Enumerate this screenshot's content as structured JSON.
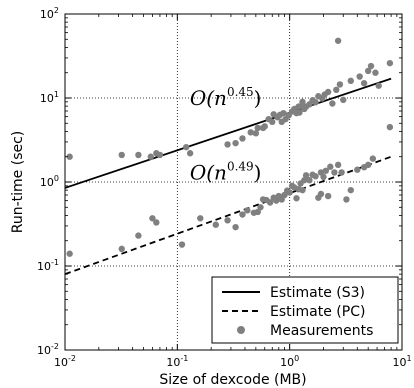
{
  "chart_data": {
    "type": "scatter",
    "xlabel": "Size of dexcode (MB)",
    "ylabel": "Run-time (sec)",
    "xscale": "log",
    "yscale": "log",
    "xlim": [
      0.01,
      10
    ],
    "ylim": [
      0.01,
      100
    ],
    "grid": true,
    "legend_position": "bottom-right",
    "x_ticks": [
      {
        "base": "10",
        "exp": "-2",
        "value": 0.01
      },
      {
        "base": "10",
        "exp": "-1",
        "value": 0.1
      },
      {
        "base": "10",
        "exp": "0",
        "value": 1
      },
      {
        "base": "10",
        "exp": "1",
        "value": 10
      }
    ],
    "y_ticks": [
      {
        "base": "10",
        "exp": "-2",
        "value": 0.01
      },
      {
        "base": "10",
        "exp": "-1",
        "value": 0.1
      },
      {
        "base": "10",
        "exp": "0",
        "value": 1
      },
      {
        "base": "10",
        "exp": "1",
        "value": 10
      },
      {
        "base": "10",
        "exp": "2",
        "value": 100
      }
    ],
    "series": [
      {
        "name": "Estimate (S3)",
        "style": "solid",
        "color": "#000000",
        "x": [
          0.01,
          8
        ],
        "y": [
          0.85,
          17
        ]
      },
      {
        "name": "Estimate (PC)",
        "style": "dashed",
        "color": "#000000",
        "x": [
          0.01,
          8
        ],
        "y": [
          0.08,
          2.0
        ]
      },
      {
        "name": "Measurements",
        "style": "marker",
        "color": "#808080",
        "points": [
          [
            0.011,
            2.0
          ],
          [
            0.032,
            2.1
          ],
          [
            0.045,
            2.1
          ],
          [
            0.058,
            2.0
          ],
          [
            0.065,
            2.2
          ],
          [
            0.07,
            2.1
          ],
          [
            0.12,
            2.6
          ],
          [
            0.13,
            2.2
          ],
          [
            0.28,
            2.8
          ],
          [
            0.33,
            2.9
          ],
          [
            0.38,
            3.3
          ],
          [
            0.45,
            3.9
          ],
          [
            0.5,
            3.8
          ],
          [
            0.52,
            4.4
          ],
          [
            0.58,
            4.4
          ],
          [
            0.6,
            4.6
          ],
          [
            0.65,
            5.6
          ],
          [
            0.7,
            5.2
          ],
          [
            0.72,
            6.4
          ],
          [
            0.78,
            5.9
          ],
          [
            0.82,
            6.3
          ],
          [
            0.88,
            6.6
          ],
          [
            0.92,
            5.6
          ],
          [
            0.98,
            6.2
          ],
          [
            1.05,
            6.9
          ],
          [
            1.1,
            7.4
          ],
          [
            1.15,
            6.6
          ],
          [
            1.22,
            6.7
          ],
          [
            1.28,
            8.1
          ],
          [
            1.35,
            7.4
          ],
          [
            1.4,
            7.9
          ],
          [
            1.5,
            8.4
          ],
          [
            1.6,
            9.4
          ],
          [
            1.7,
            8.9
          ],
          [
            1.8,
            10.5
          ],
          [
            1.95,
            9.9
          ],
          [
            2.05,
            11.0
          ],
          [
            2.2,
            11.8
          ],
          [
            2.4,
            8.6
          ],
          [
            2.6,
            12.5
          ],
          [
            2.8,
            14.5
          ],
          [
            3.0,
            9.5
          ],
          [
            2.7,
            48
          ],
          [
            3.5,
            16
          ],
          [
            4.2,
            18
          ],
          [
            4.6,
            15
          ],
          [
            5.0,
            21
          ],
          [
            5.3,
            24
          ],
          [
            5.8,
            20
          ],
          [
            6.2,
            14
          ],
          [
            7.8,
            26
          ],
          [
            0.85,
            5.2
          ],
          [
            1.2,
            7.9
          ],
          [
            1.3,
            9.0
          ],
          [
            0.011,
            0.14
          ],
          [
            0.032,
            0.16
          ],
          [
            0.045,
            0.23
          ],
          [
            0.06,
            0.37
          ],
          [
            0.065,
            0.33
          ],
          [
            0.11,
            0.18
          ],
          [
            0.16,
            0.37
          ],
          [
            0.22,
            0.31
          ],
          [
            0.28,
            0.35
          ],
          [
            0.33,
            0.29
          ],
          [
            0.38,
            0.41
          ],
          [
            0.42,
            0.46
          ],
          [
            0.48,
            0.43
          ],
          [
            0.52,
            0.44
          ],
          [
            0.55,
            0.5
          ],
          [
            0.58,
            0.62
          ],
          [
            0.62,
            0.61
          ],
          [
            0.67,
            0.57
          ],
          [
            0.72,
            0.65
          ],
          [
            0.76,
            0.6
          ],
          [
            0.8,
            0.68
          ],
          [
            0.85,
            0.62
          ],
          [
            0.9,
            0.7
          ],
          [
            0.95,
            0.79
          ],
          [
            1.0,
            0.75
          ],
          [
            1.05,
            0.9
          ],
          [
            1.1,
            0.86
          ],
          [
            1.15,
            0.64
          ],
          [
            1.2,
            0.82
          ],
          [
            1.25,
            0.96
          ],
          [
            1.3,
            0.8
          ],
          [
            1.35,
            1.05
          ],
          [
            1.4,
            1.2
          ],
          [
            1.5,
            1.05
          ],
          [
            1.6,
            1.22
          ],
          [
            1.7,
            1.17
          ],
          [
            1.8,
            0.65
          ],
          [
            1.9,
            1.3
          ],
          [
            2.0,
            1.15
          ],
          [
            2.1,
            1.36
          ],
          [
            2.3,
            1.52
          ],
          [
            2.5,
            1.3
          ],
          [
            2.7,
            1.6
          ],
          [
            2.9,
            1.3
          ],
          [
            3.2,
            0.62
          ],
          [
            3.5,
            0.8
          ],
          [
            4.0,
            1.4
          ],
          [
            4.6,
            1.5
          ],
          [
            5.0,
            1.6
          ],
          [
            5.5,
            1.9
          ],
          [
            7.8,
            4.5
          ],
          [
            1.9,
            0.72
          ],
          [
            2.2,
            0.68
          ]
        ]
      }
    ],
    "annotations": [
      {
        "base": "O(n",
        "exponent": "0.45",
        "close": ")",
        "anchor_x": 0.5,
        "anchor_y": 10
      },
      {
        "base": "O(n",
        "exponent": "0.49",
        "close": ")",
        "anchor_x": 0.5,
        "anchor_y": 1.3
      }
    ]
  }
}
